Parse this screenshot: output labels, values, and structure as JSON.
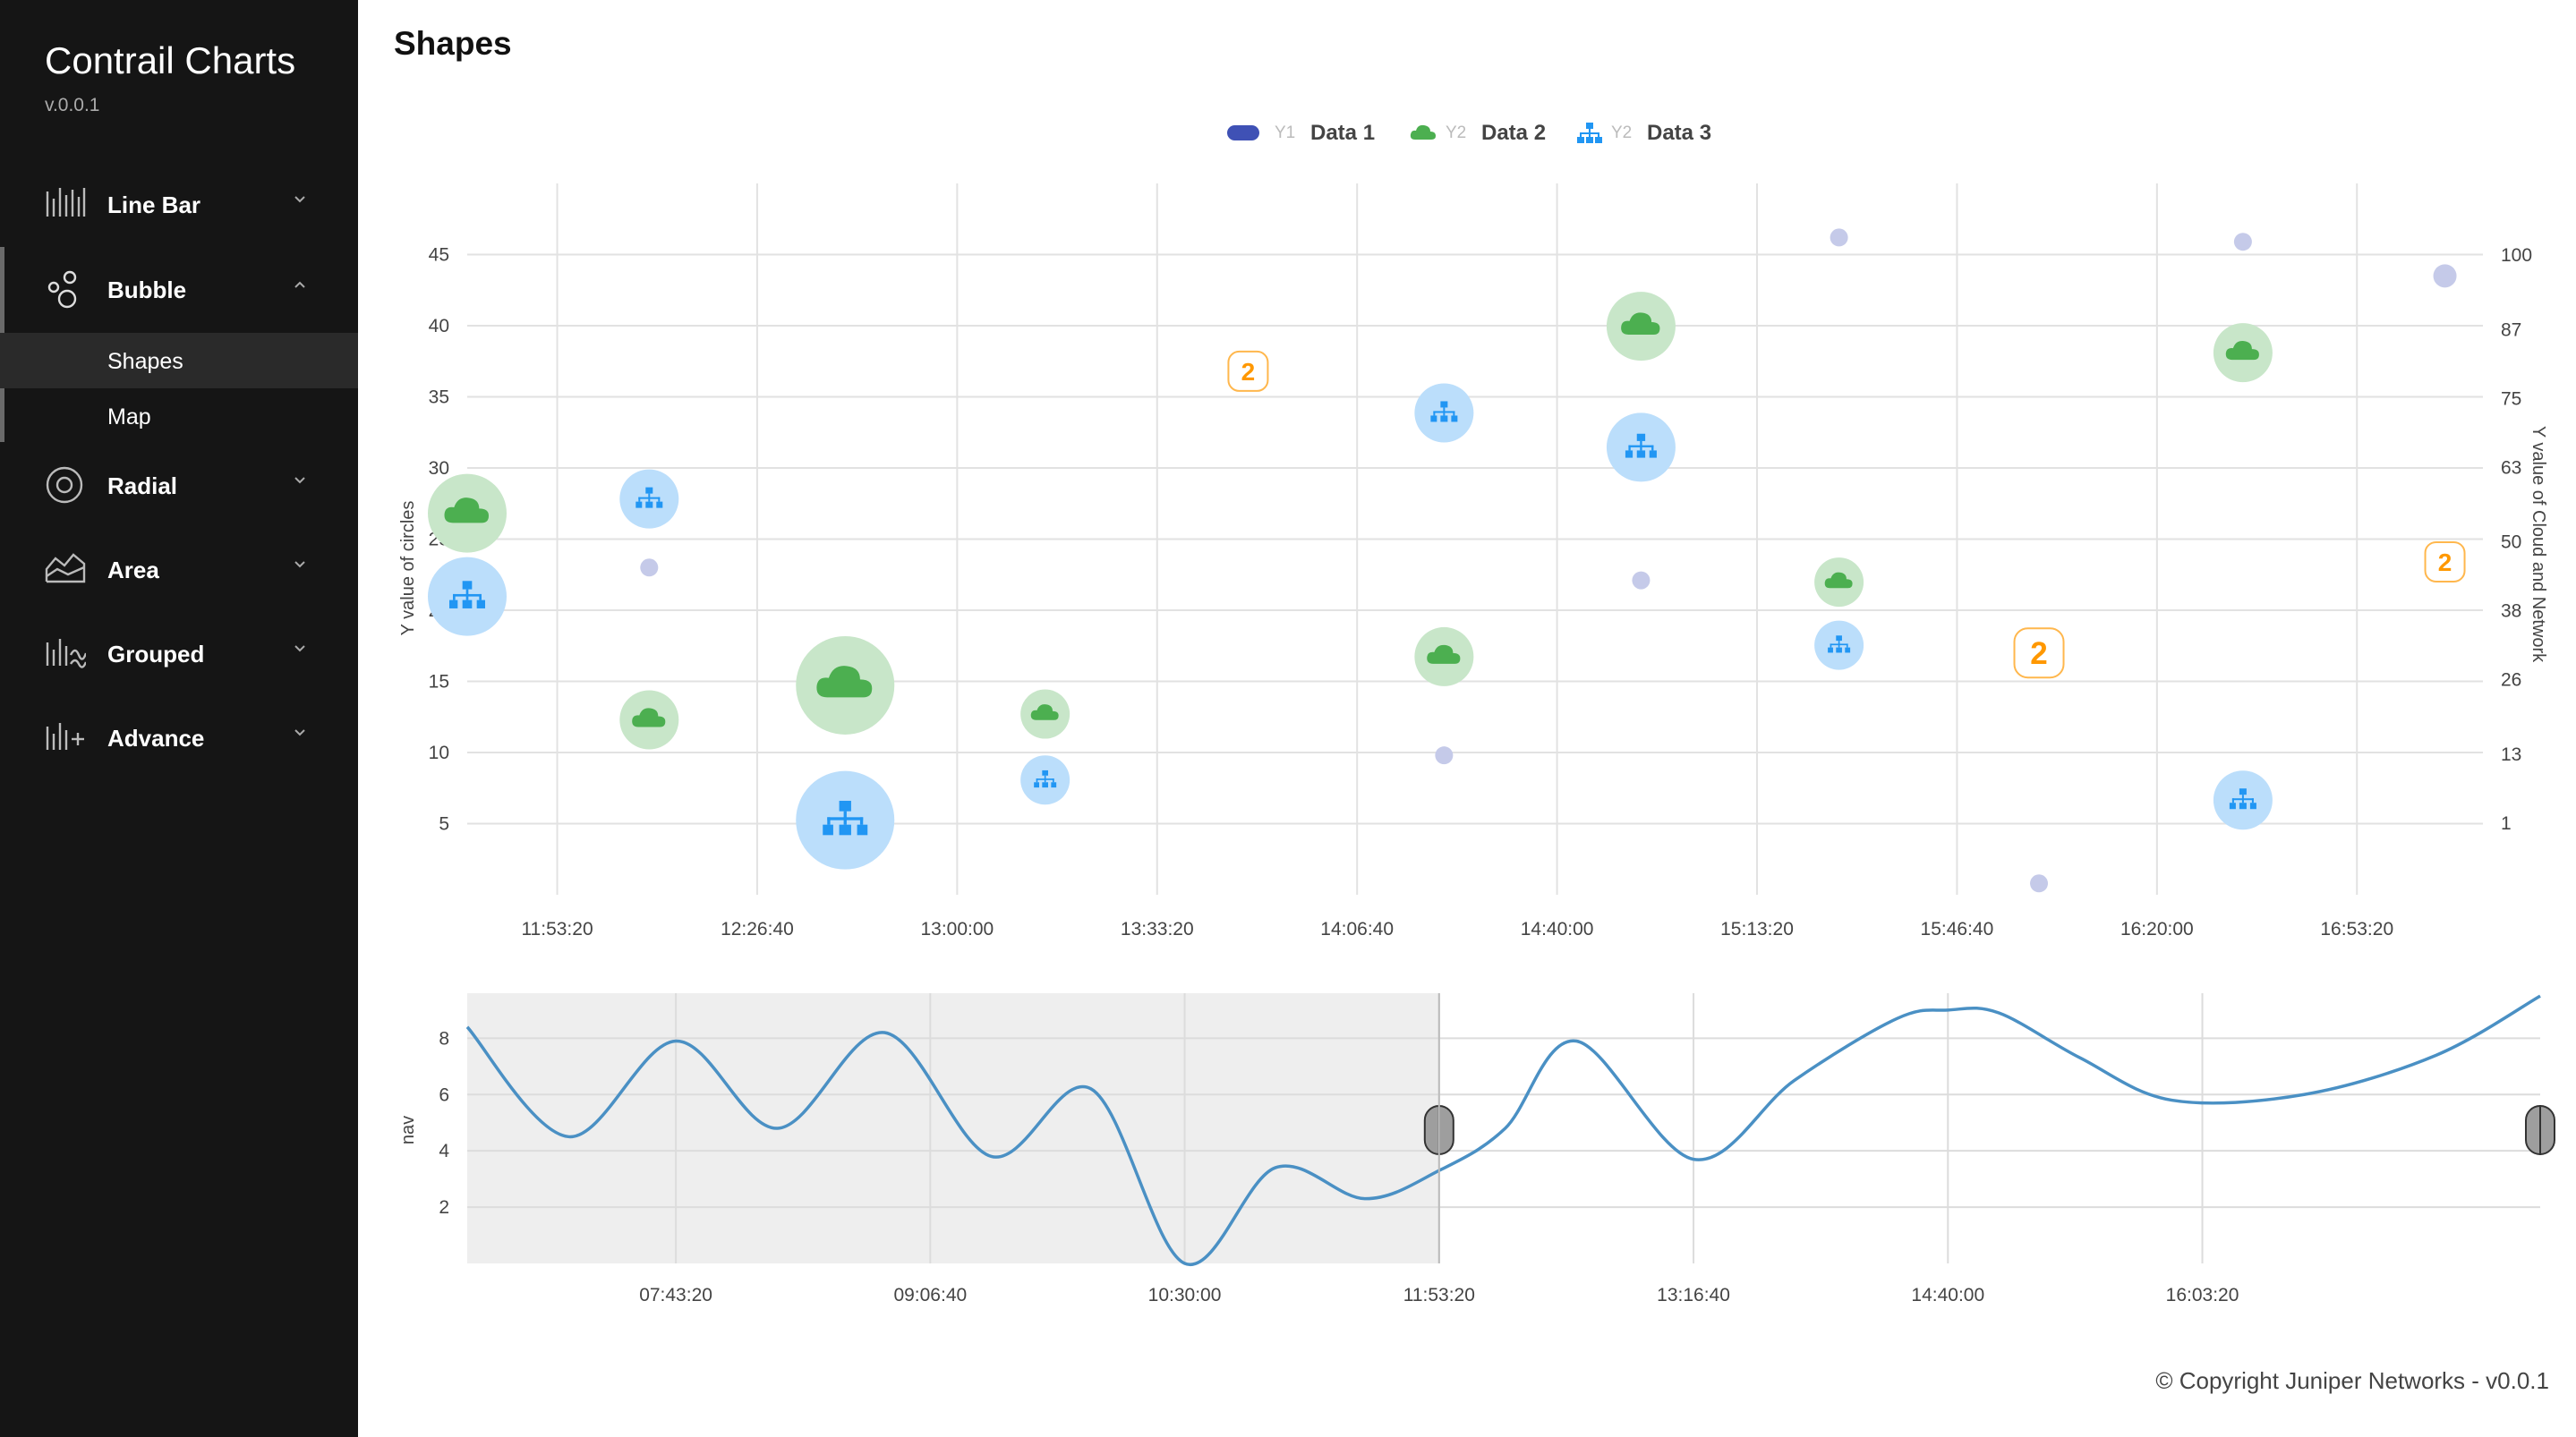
{
  "sidebar": {
    "brand": "Contrail Charts",
    "version": "v.0.0.1",
    "items": [
      {
        "label": "Line Bar",
        "icon": "line-bar-icon"
      },
      {
        "label": "Bubble",
        "icon": "bubble-icon",
        "expanded": true,
        "subitems": [
          {
            "label": "Shapes",
            "selected": true
          },
          {
            "label": "Map"
          }
        ]
      },
      {
        "label": "Radial",
        "icon": "radial-icon"
      },
      {
        "label": "Area",
        "icon": "area-icon"
      },
      {
        "label": "Grouped",
        "icon": "grouped-icon"
      },
      {
        "label": "Advance",
        "icon": "advance-icon"
      }
    ]
  },
  "page": {
    "title": "Shapes"
  },
  "footer": {
    "copyright": "© Copyright Juniper Networks - v0.0.1"
  },
  "colors": {
    "data1": "#3f51b5",
    "data2": "#4caf50",
    "data3": "#2196f3",
    "cluster": "#ff9800",
    "nav_line": "#4a90c4"
  },
  "chart_data": [
    {
      "type": "scatter",
      "title": "",
      "legend": {
        "placement": "top-center",
        "entries": [
          {
            "axis": "Y1",
            "label": "Data 1",
            "shape": "circle"
          },
          {
            "axis": "Y2",
            "label": "Data 2",
            "shape": "cloud-icon"
          },
          {
            "axis": "Y2",
            "label": "Data 3",
            "shape": "network-icon"
          }
        ]
      },
      "xticks": [
        "11:53:20",
        "12:26:40",
        "13:00:00",
        "13:33:20",
        "14:06:40",
        "14:40:00",
        "15:13:20",
        "15:46:40",
        "16:20:00",
        "16:53:20"
      ],
      "x_range": [
        "11:38:20",
        "17:14:20"
      ],
      "y1": {
        "label": "Y value of circles",
        "ticks": [
          5,
          10,
          15,
          20,
          25,
          30,
          35,
          40,
          45
        ],
        "range": [
          0,
          50
        ]
      },
      "y2": {
        "label": "Y value of Cloud and Network",
        "ticks": [
          1,
          13,
          26,
          38,
          50,
          63,
          75,
          87,
          100
        ],
        "range": [
          -11.5,
          112.5
        ]
      },
      "grid": true,
      "series": [
        {
          "name": "Data 1",
          "axis": "y1",
          "points": [
            {
              "x": "12:08:40",
              "y": 23,
              "r": 1
            },
            {
              "x": "14:21:10",
              "y": 9.8,
              "r": 1
            },
            {
              "x": "14:54:00",
              "y": 22.1,
              "r": 1
            },
            {
              "x": "15:27:00",
              "y": 46.2,
              "r": 1
            },
            {
              "x": "16:00:20",
              "y": 0.8,
              "r": 1
            },
            {
              "x": "16:34:20",
              "y": 45.9,
              "r": 1
            },
            {
              "x": "17:08:00",
              "y": 43.5,
              "r": 1.3
            }
          ]
        },
        {
          "name": "Data 2",
          "axis": "y2",
          "points": [
            {
              "x": "11:38:20",
              "y": 55,
              "r": 4
            },
            {
              "x": "12:08:40",
              "y": 19,
              "r": 3
            },
            {
              "x": "12:41:20",
              "y": 25,
              "r": 5
            },
            {
              "x": "13:14:40",
              "y": 20,
              "r": 2.5
            },
            {
              "x": "14:21:10",
              "y": 30,
              "r": 3
            },
            {
              "x": "14:54:00",
              "y": 87.6,
              "r": 3.5
            },
            {
              "x": "15:27:00",
              "y": 43,
              "r": 2.5
            },
            {
              "x": "16:34:20",
              "y": 83,
              "r": 3
            }
          ]
        },
        {
          "name": "Data 3",
          "axis": "y2",
          "points": [
            {
              "x": "11:38:20",
              "y": 40.5,
              "r": 4
            },
            {
              "x": "12:08:40",
              "y": 57.5,
              "r": 3
            },
            {
              "x": "12:41:20",
              "y": 1.5,
              "r": 5
            },
            {
              "x": "13:14:40",
              "y": 8.5,
              "r": 2.5
            },
            {
              "x": "14:21:10",
              "y": 72.5,
              "r": 3
            },
            {
              "x": "14:54:00",
              "y": 66.5,
              "r": 3.5
            },
            {
              "x": "15:27:00",
              "y": 32,
              "r": 2.5
            },
            {
              "x": "16:34:20",
              "y": 5,
              "r": 3
            }
          ]
        }
      ],
      "clusters": [
        {
          "x": "13:48:30",
          "y": 36.8,
          "count": "2"
        },
        {
          "x": "16:00:20",
          "y": 17,
          "count": "2"
        },
        {
          "x": "17:08:00",
          "y": 23.4,
          "count": "2"
        }
      ]
    },
    {
      "type": "line",
      "title": "",
      "ylabel": "nav",
      "xticks": [
        "07:43:20",
        "09:06:40",
        "10:30:00",
        "11:53:20",
        "13:16:40",
        "14:40:00",
        "16:03:20"
      ],
      "x_range": [
        "06:35:00",
        "17:54:00"
      ],
      "yticks": [
        2,
        4,
        6,
        8
      ],
      "y_range": [
        0,
        9.6
      ],
      "grid": true,
      "selection": {
        "from": "06:35:00",
        "to": "11:53:20"
      },
      "series": [
        {
          "name": "",
          "x": [
            "06:35:00",
            "07:08:20",
            "07:43:20",
            "08:16:40",
            "08:51:40",
            "09:26:40",
            "09:59:20",
            "10:30:00",
            "10:59:40",
            "11:29:00",
            "11:53:20",
            "12:15:00",
            "12:38:20",
            "13:16:40",
            "13:49:40",
            "14:23:20",
            "14:40:00",
            "14:56:40",
            "15:23:20",
            "15:53:20",
            "16:36:40",
            "17:20:00",
            "17:54:00"
          ],
          "y": [
            8.4,
            4.5,
            7.9,
            4.8,
            8.2,
            3.8,
            6.2,
            0.0,
            3.4,
            2.3,
            3.3,
            4.8,
            7.9,
            3.7,
            6.5,
            8.7,
            9.0,
            8.9,
            7.3,
            5.8,
            6.0,
            7.4,
            9.5
          ]
        }
      ]
    }
  ]
}
